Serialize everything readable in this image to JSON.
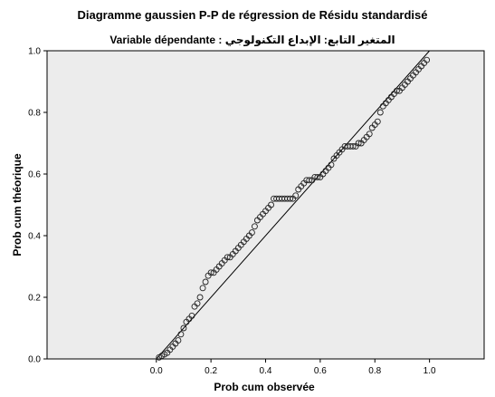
{
  "chart_data": {
    "type": "scatter",
    "title": "Diagramme gaussien P-P de régression de Résidu standardisé",
    "subtitle": "Variable dépendante : المتغير التابع: الإبداع التكنولوجي",
    "xlabel": "Prob cum observée",
    "ylabel": "Prob cum théorique",
    "xlim": [
      -0.4,
      1.2
    ],
    "ylim": [
      0.0,
      1.0
    ],
    "x_ticks": [
      "0.0",
      "0.2",
      "0.4",
      "0.6",
      "0.8",
      "1.0"
    ],
    "y_ticks": [
      "0.0",
      "0.2",
      "0.4",
      "0.6",
      "0.8",
      "1.0"
    ],
    "grid": false,
    "reference_line": {
      "from": [
        0,
        0
      ],
      "to": [
        1,
        1
      ]
    },
    "colors": {
      "plot_background": "#ececec",
      "marker_stroke": "#222222",
      "reference_line": "#000000",
      "axis": "#000000"
    },
    "series": [
      {
        "x": [
          0.01,
          0.02,
          0.03,
          0.04,
          0.05,
          0.06,
          0.07,
          0.08,
          0.09,
          0.1,
          0.11,
          0.12,
          0.13,
          0.14,
          0.15,
          0.16,
          0.17,
          0.18,
          0.19,
          0.2,
          0.21,
          0.22,
          0.23,
          0.24,
          0.25,
          0.26,
          0.27,
          0.28,
          0.29,
          0.3,
          0.31,
          0.32,
          0.33,
          0.34,
          0.35,
          0.36,
          0.37,
          0.38,
          0.39,
          0.4,
          0.41,
          0.42,
          0.43,
          0.44,
          0.45,
          0.46,
          0.47,
          0.48,
          0.49,
          0.5,
          0.51,
          0.52,
          0.53,
          0.54,
          0.55,
          0.56,
          0.57,
          0.58,
          0.59,
          0.6,
          0.61,
          0.62,
          0.63,
          0.64,
          0.65,
          0.66,
          0.67,
          0.68,
          0.69,
          0.7,
          0.71,
          0.72,
          0.73,
          0.74,
          0.75,
          0.76,
          0.77,
          0.78,
          0.79,
          0.8,
          0.81,
          0.82,
          0.83,
          0.84,
          0.85,
          0.86,
          0.87,
          0.88,
          0.89,
          0.9,
          0.91,
          0.92,
          0.93,
          0.94,
          0.95,
          0.96,
          0.97,
          0.98,
          0.99
        ],
        "y": [
          0.005,
          0.01,
          0.015,
          0.02,
          0.03,
          0.04,
          0.05,
          0.06,
          0.08,
          0.1,
          0.12,
          0.13,
          0.14,
          0.17,
          0.18,
          0.2,
          0.23,
          0.25,
          0.27,
          0.28,
          0.28,
          0.29,
          0.3,
          0.31,
          0.32,
          0.33,
          0.33,
          0.34,
          0.35,
          0.36,
          0.37,
          0.38,
          0.39,
          0.4,
          0.41,
          0.43,
          0.45,
          0.46,
          0.47,
          0.48,
          0.49,
          0.5,
          0.52,
          0.52,
          0.52,
          0.52,
          0.52,
          0.52,
          0.52,
          0.52,
          0.53,
          0.55,
          0.56,
          0.57,
          0.58,
          0.58,
          0.58,
          0.59,
          0.59,
          0.59,
          0.6,
          0.61,
          0.62,
          0.63,
          0.65,
          0.66,
          0.67,
          0.68,
          0.69,
          0.69,
          0.69,
          0.69,
          0.69,
          0.7,
          0.7,
          0.71,
          0.72,
          0.73,
          0.75,
          0.76,
          0.77,
          0.8,
          0.82,
          0.83,
          0.84,
          0.85,
          0.86,
          0.87,
          0.87,
          0.88,
          0.89,
          0.9,
          0.91,
          0.92,
          0.93,
          0.94,
          0.95,
          0.96,
          0.97
        ]
      }
    ]
  }
}
